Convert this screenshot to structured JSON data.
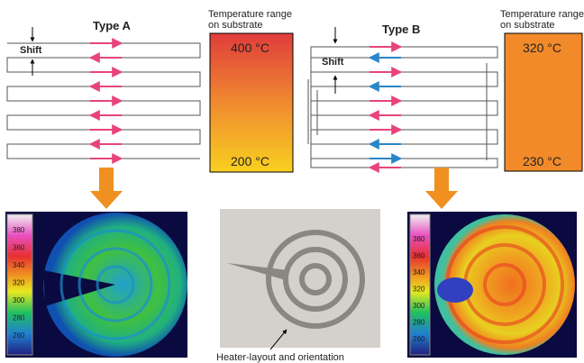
{
  "left": {
    "title": "Type A",
    "shift": "Shift",
    "range_label": [
      "Temperature range",
      "on substrate"
    ],
    "t_high": "400 °C",
    "t_low": "200 °C",
    "scale": [
      "380",
      "360",
      "340",
      "320",
      "300",
      "280",
      "260"
    ]
  },
  "right": {
    "title": "Type B",
    "shift": "Shift",
    "range_label": [
      "Temperature range",
      "on substrate"
    ],
    "t_high": "320 °C",
    "t_low": "230 °C",
    "scale": [
      "380",
      "360",
      "340",
      "320",
      "300",
      "280",
      "260"
    ]
  },
  "photo": {
    "caption": "Heater-layout and orientation"
  }
}
